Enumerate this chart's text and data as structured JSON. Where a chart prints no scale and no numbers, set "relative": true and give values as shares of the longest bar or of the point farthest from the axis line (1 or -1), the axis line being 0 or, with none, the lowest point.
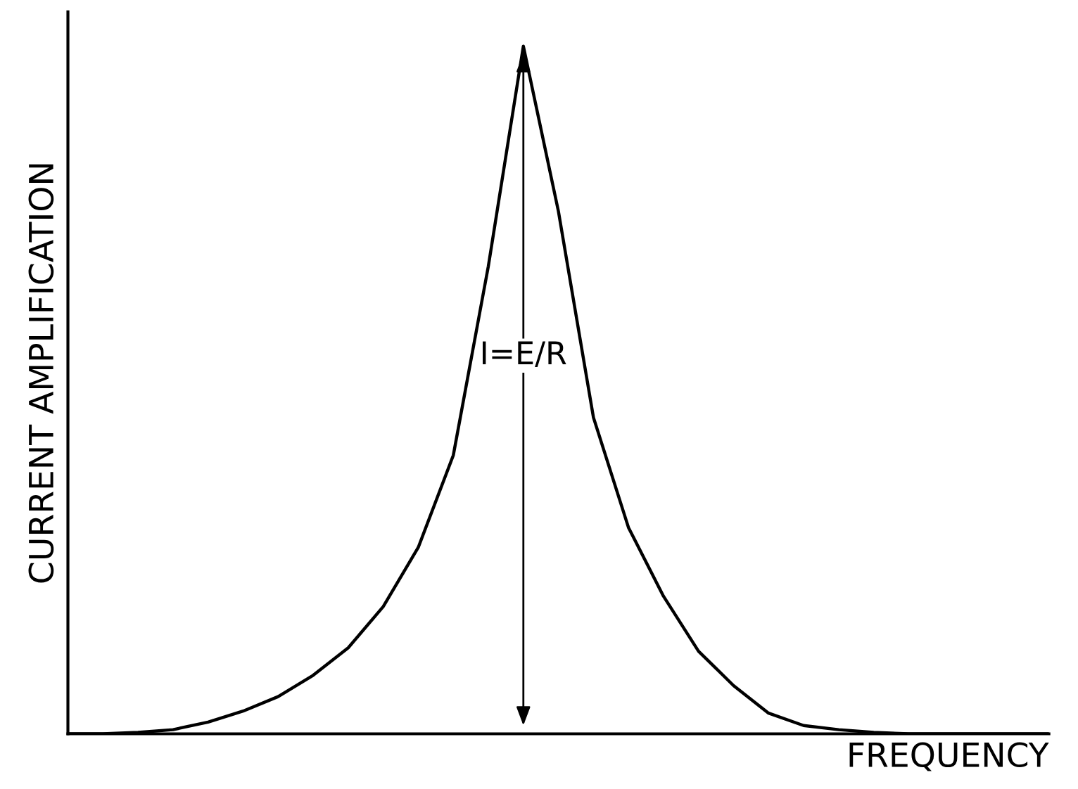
{
  "chart_data": {
    "type": "line",
    "xlabel": "FREQUENCY",
    "ylabel": "CURRENT AMPLIFICATION",
    "relative": true,
    "color": "#000000",
    "categories": [
      null,
      null,
      null,
      null,
      null,
      null,
      null,
      null,
      null,
      null,
      null,
      null,
      null,
      null,
      null,
      null,
      null,
      null,
      null,
      null,
      null,
      null,
      null,
      null,
      null,
      null,
      null,
      null,
      null
    ],
    "values": [
      0,
      0,
      0.002,
      0.006,
      0.017,
      0.033,
      0.054,
      0.085,
      0.125,
      0.185,
      0.271,
      0.405,
      0.68,
      1,
      0.76,
      0.46,
      0.3,
      0.2,
      0.12,
      0.07,
      0.03,
      0.012,
      0.006,
      0.002,
      0,
      0,
      0,
      0,
      0
    ],
    "annotations": [
      "I=E/R"
    ]
  }
}
